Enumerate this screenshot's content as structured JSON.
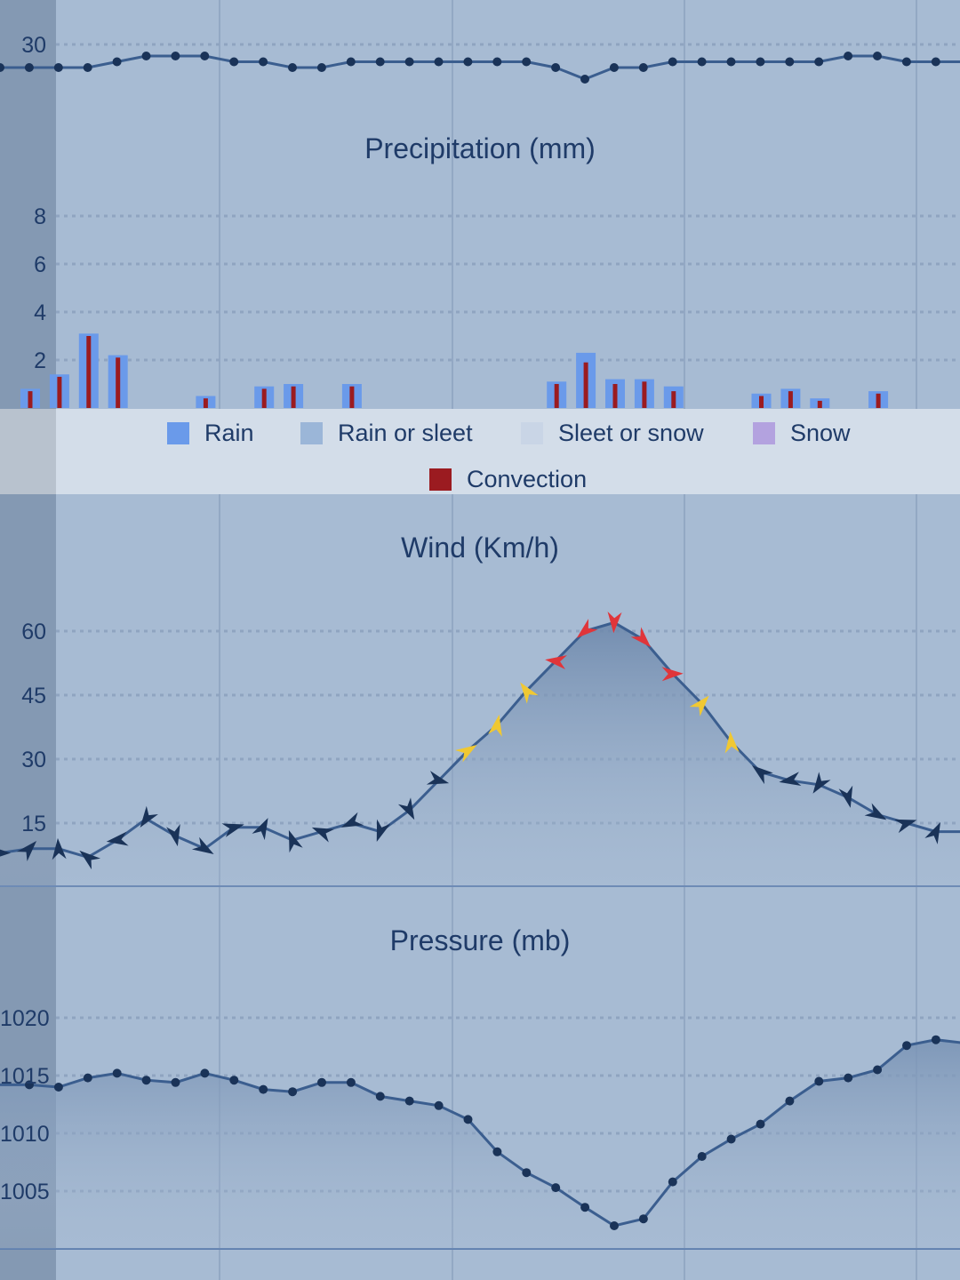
{
  "colors": {
    "background": "#a7bbd3",
    "axis_panel": "#8499b3",
    "line": "#3b5e8f",
    "marker": "#1a3358",
    "rain": "#6a9aea",
    "rain_or_sleet": "#9bb6d8",
    "sleet_or_snow": "#c9d5e6",
    "snow": "#b3a2df",
    "convection": "#9b1b20",
    "wind_low": "#1a3358",
    "wind_mid": "#f0c832",
    "wind_high": "#e0353a"
  },
  "legend": {
    "rain": "Rain",
    "rain_or_sleet": "Rain or sleet",
    "sleet_or_snow": "Sleet or snow",
    "snow": "Snow",
    "convection": "Convection"
  },
  "chart_data": [
    {
      "type": "line",
      "title": "",
      "yticks": [
        "30"
      ],
      "ylim": [
        22,
        34
      ],
      "values": [
        26,
        26,
        26,
        26,
        27,
        28,
        28,
        28,
        27,
        27,
        26,
        26,
        27,
        27,
        27,
        27,
        27,
        27,
        27,
        26,
        24,
        26,
        26,
        27,
        27,
        27,
        27,
        27,
        27,
        28,
        28,
        27,
        27,
        27
      ]
    },
    {
      "type": "bar",
      "title": "Precipitation (mm)",
      "yticks": [
        "2",
        "4",
        "6",
        "8"
      ],
      "ylim": [
        0,
        8
      ],
      "grid": true,
      "series": [
        {
          "name": "Rain",
          "values": [
            0.8,
            1.4,
            3.1,
            2.2,
            0,
            0,
            0.5,
            0,
            0.9,
            1.0,
            0,
            1.0,
            0,
            0,
            0,
            0,
            0,
            0,
            1.1,
            2.3,
            1.2,
            1.2,
            0.9,
            0,
            0,
            0.6,
            0.8,
            0.4,
            0,
            0.7,
            0,
            0,
            0
          ]
        },
        {
          "name": "Convection",
          "values": [
            0.7,
            1.3,
            3.0,
            2.1,
            0,
            0,
            0.4,
            0,
            0.8,
            0.9,
            0,
            0.9,
            0,
            0,
            0,
            0,
            0,
            0,
            1.0,
            1.9,
            1.0,
            1.1,
            0.7,
            0,
            0,
            0.5,
            0.7,
            0.3,
            0,
            0.6,
            0,
            0,
            0
          ]
        }
      ]
    },
    {
      "type": "line",
      "title": "Wind (Km/h)",
      "yticks": [
        "15",
        "30",
        "45",
        "60"
      ],
      "ylim": [
        0,
        75
      ],
      "grid": true,
      "values": [
        8,
        9,
        9,
        7,
        11,
        16,
        12,
        9,
        14,
        14,
        11,
        13,
        15,
        13,
        18,
        25,
        32,
        38,
        46,
        53,
        60,
        62,
        58,
        50,
        43,
        34,
        27,
        25,
        24,
        21,
        17,
        15,
        13,
        13
      ]
    },
    {
      "type": "area",
      "title": "Pressure (mb)",
      "yticks": [
        "1005",
        "1010",
        "1015",
        "1020"
      ],
      "ylim": [
        1000,
        1025
      ],
      "grid": true,
      "values": [
        1014.2,
        1014.0,
        1014.8,
        1015.2,
        1014.6,
        1014.4,
        1015.2,
        1014.6,
        1013.8,
        1013.6,
        1014.4,
        1014.4,
        1013.2,
        1012.8,
        1012.4,
        1011.2,
        1008.4,
        1006.6,
        1005.3,
        1003.6,
        1002.0,
        1002.6,
        1005.8,
        1008.0,
        1009.5,
        1010.8,
        1012.8,
        1014.5,
        1014.8,
        1015.5,
        1017.6,
        1018.1,
        1017.8
      ]
    }
  ]
}
